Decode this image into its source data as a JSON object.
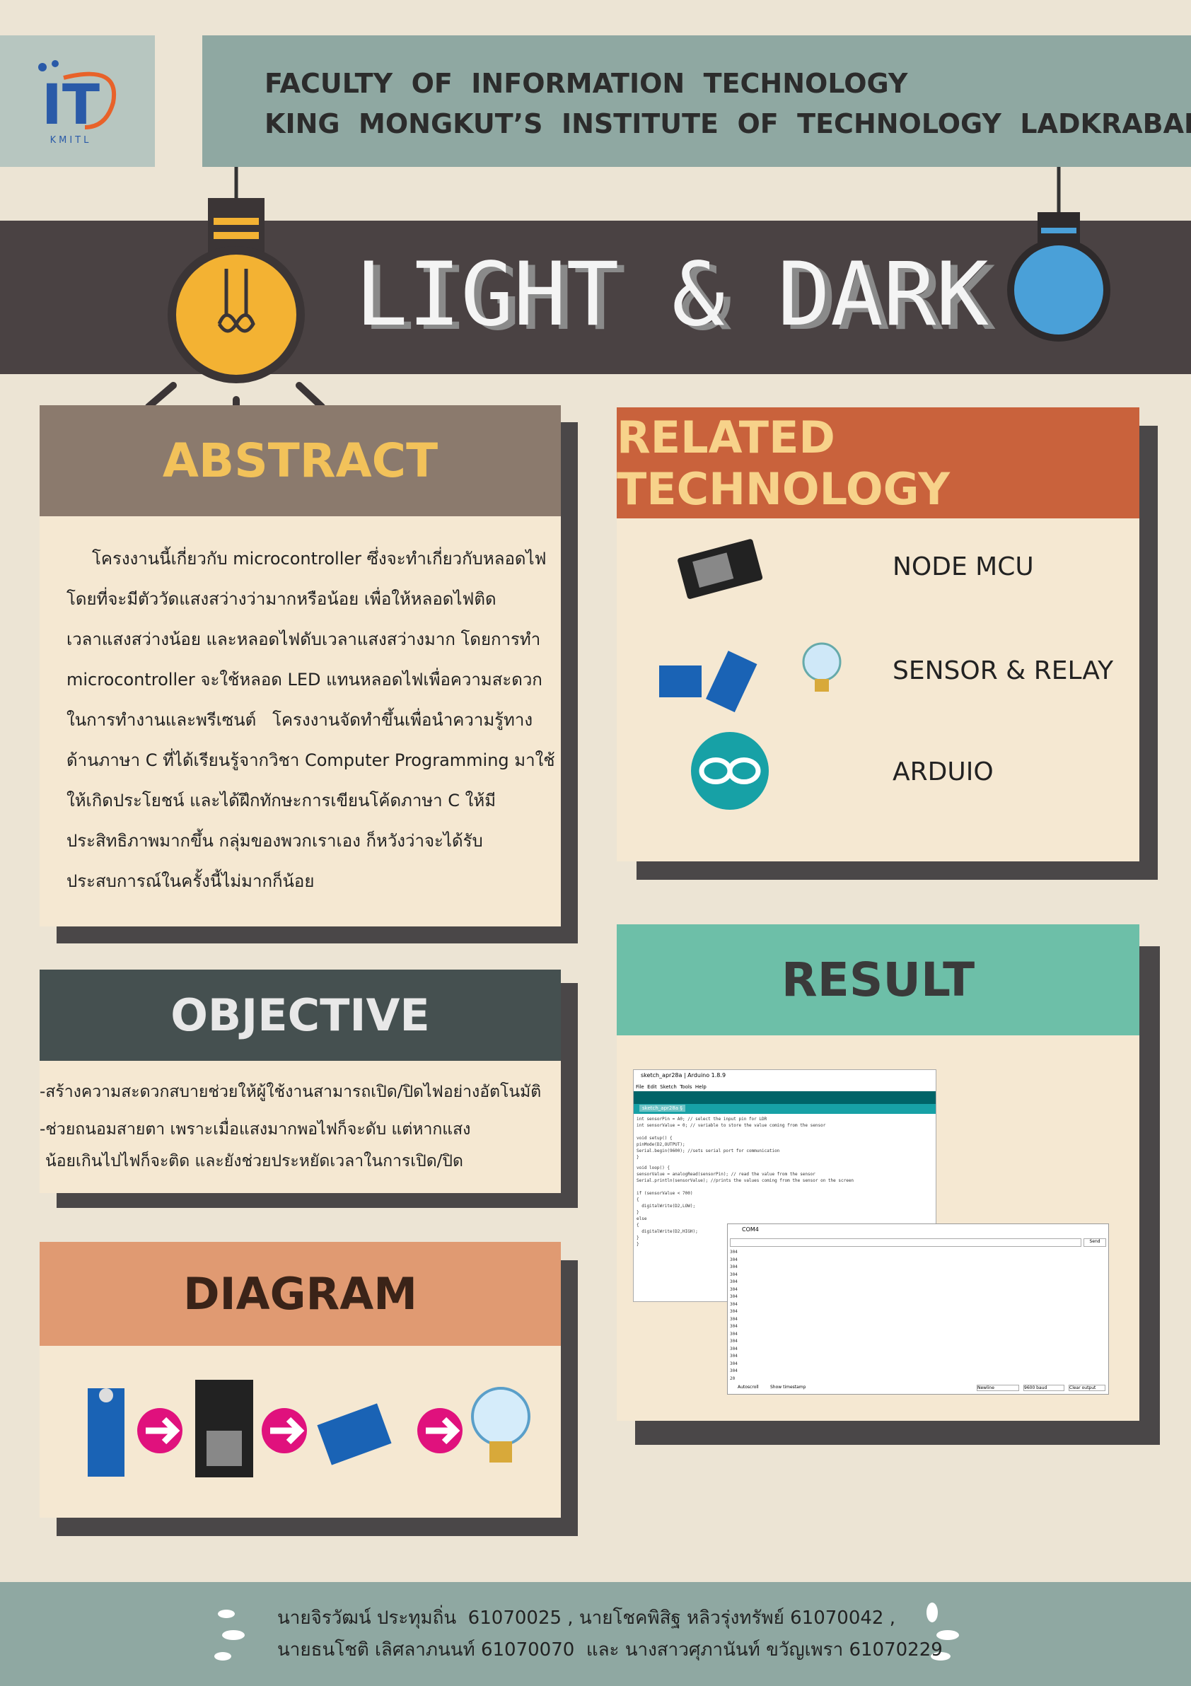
{
  "header": {
    "logo_text": "IT",
    "logo_sub": "KMITL",
    "line1": "FACULTY  OF  INFORMATION  TECHNOLOGY",
    "line2": "KING  MONGKUT’S  INSTITUTE  OF  TECHNOLOGY  LADKRABANG"
  },
  "title": "LIGHT & DARK",
  "abstract": {
    "heading": "ABSTRACT",
    "lines": [
      "โครงงานนี้เกี่ยวกับ microcontroller ซึ่งจะทำเกี่ยวกับหลอดไฟ",
      "โดยที่จะมีตัววัดแสงสว่างว่ามากหรือน้อย เพื่อให้หลอดไฟติด",
      "เวลาแสงสว่างน้อย และหลอดไฟดับเวลาแสงสว่างมาก โดยการทำ",
      "microcontroller จะใช้หลอด LED แทนหลอดไฟเพื่อความสะดวก",
      "ในการทำงานและพรีเซนต์   โครงงานจัดทำขึ้นเพื่อนำความรู้ทาง",
      "ด้านภาษา C ที่ได้เรียนรู้จากวิชา Computer Programming มาใช้",
      "ให้เกิดประโยชน์ และได้ฝึกทักษะการเขียนโค้ดภาษา C ให้มี",
      "ประสิทธิภาพมากขึ้น กลุ่มของพวกเราเอง ก็หวังว่าจะได้รับ",
      "ประสบการณ์ในครั้งนี้ไม่มากก็น้อย"
    ]
  },
  "related_technology": {
    "heading": "RELATED TECHNOLOGY",
    "items": [
      "NODE MCU",
      "SENSOR & RELAY",
      "ARDUIO"
    ]
  },
  "objective": {
    "heading": "OBJECTIVE",
    "lines": [
      "-สร้างความสะดวกสบายช่วยให้ผู้ใช้งานสามารถเปิด/ปิดไฟอย่างอัตโนมัติ",
      "-ช่วยถนอมสายตา เพราะเมื่อแสงมากพอไฟก็จะดับ แต่หากแสง",
      "น้อยเกินไปไฟก็จะติด และยังช่วยประหยัดเวลาในการเปิด/ปิด"
    ]
  },
  "result": {
    "heading": "RESULT",
    "ide_title": "sketch_apr28a | Arduino 1.8.9",
    "menu": "File  Edit  Sketch  Tools  Help",
    "tab": "sketch_apr28a §",
    "code": [
      "int sensorPin = A0; // select the input pin for LDR",
      "int sensorValue = 0; // variable to store the value coming from the sensor",
      "void setup() {",
      "pinMode(D2,OUTPUT);",
      "Serial.begin(9600); //sets serial port for communication",
      "}",
      "void loop() {",
      "sensorValue = analogRead(sensorPin); // read the value from the sensor",
      "Serial.println(sensorValue); //prints the values coming from the sensor on the screen",
      "if (sensorValue < 700)",
      "{",
      "  digitalWrite(D2,LOW);",
      "}",
      "else",
      "{",
      "  digitalWrite(D2,HIGH);",
      "}",
      "}"
    ],
    "serial_title": "COM4",
    "send": "Send",
    "serial": [
      "304",
      "304",
      "304",
      "304",
      "304",
      "304",
      "304",
      "304",
      "304",
      "304",
      "304",
      "304",
      "304",
      "304",
      "304",
      "304",
      "304",
      "20"
    ],
    "autoscroll": "Autoscroll",
    "timestamp": "Show timestamp",
    "newline": "Newline",
    "baud": "9600 baud",
    "clear": "Clear output"
  },
  "diagram": {
    "heading": "DIAGRAM"
  },
  "footer": {
    "lines": [
      "นายจิรวัฒน์ ประทุมถิ่น  61070025 , นายโชคพิสิฐ หลิวรุ่งทรัพย์ 61070042 ,",
      "นายธนโชติ เลิศลาภนนท์ 61070070  และ นางสาวศุภานันท์ ขวัญเพรา 61070229"
    ]
  }
}
